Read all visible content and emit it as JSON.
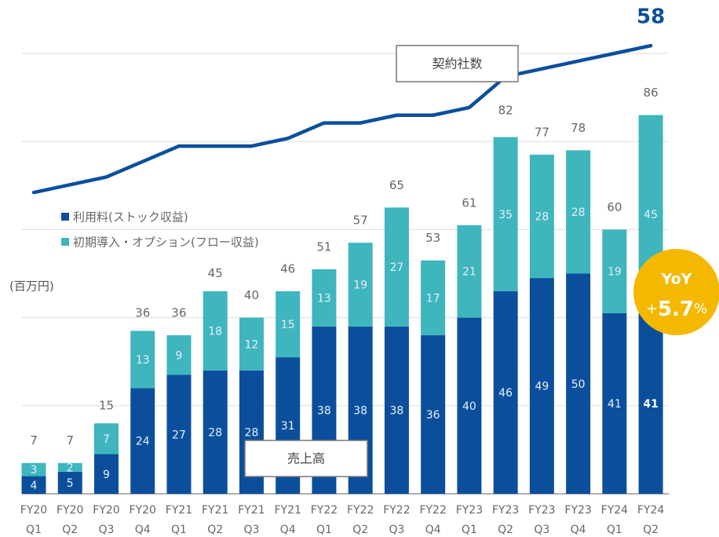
{
  "chart_data": {
    "type": "bar",
    "stacked": true,
    "y_unit_label": "(百万円)",
    "categories": [
      [
        "FY20",
        "Q1"
      ],
      [
        "FY20",
        "Q2"
      ],
      [
        "FY20",
        "Q3"
      ],
      [
        "FY20",
        "Q4"
      ],
      [
        "FY21",
        "Q1"
      ],
      [
        "FY21",
        "Q2"
      ],
      [
        "FY21",
        "Q3"
      ],
      [
        "FY21",
        "Q4"
      ],
      [
        "FY22",
        "Q1"
      ],
      [
        "FY22",
        "Q2"
      ],
      [
        "FY22",
        "Q3"
      ],
      [
        "FY22",
        "Q4"
      ],
      [
        "FY23",
        "Q1"
      ],
      [
        "FY23",
        "Q2"
      ],
      [
        "FY23",
        "Q3"
      ],
      [
        "FY23",
        "Q4"
      ],
      [
        "FY24",
        "Q1"
      ],
      [
        "FY24",
        "Q2"
      ]
    ],
    "series": [
      {
        "name": "利用料(ストック収益)",
        "color": "#0b4f9c",
        "values": [
          4,
          5,
          9,
          24,
          27,
          28,
          28,
          31,
          38,
          38,
          38,
          36,
          40,
          46,
          49,
          50,
          41,
          41
        ]
      },
      {
        "name": "初期導入・オプション(フロー収益)",
        "color": "#3fb5be",
        "values": [
          3,
          2,
          7,
          13,
          9,
          18,
          12,
          15,
          13,
          19,
          27,
          17,
          21,
          35,
          28,
          28,
          19,
          45
        ]
      },
      {
        "name": "契約社数",
        "color": "#0b4f9c",
        "type": "line",
        "axis": "y2",
        "values": [
          39,
          40,
          41,
          43,
          45,
          45,
          45,
          46,
          48,
          48,
          49,
          49,
          50,
          54,
          55,
          56,
          57,
          58
        ]
      }
    ],
    "totals": [
      7,
      7,
      15,
      36,
      36,
      45,
      40,
      46,
      51,
      57,
      65,
      53,
      61,
      82,
      77,
      78,
      60,
      86
    ],
    "ylim": [
      0,
      100
    ],
    "yticks": [
      0,
      20,
      40,
      60,
      80,
      100
    ],
    "y2lim": [
      0,
      57
    ],
    "grid": true,
    "legend": "upper left",
    "annotations": {
      "line_box": "契約社数",
      "bar_box": "売上高"
    },
    "yoy": {
      "label": "YoY",
      "sign": "+",
      "value": "5.7",
      "unit": "%",
      "color": "#f5b800"
    }
  }
}
